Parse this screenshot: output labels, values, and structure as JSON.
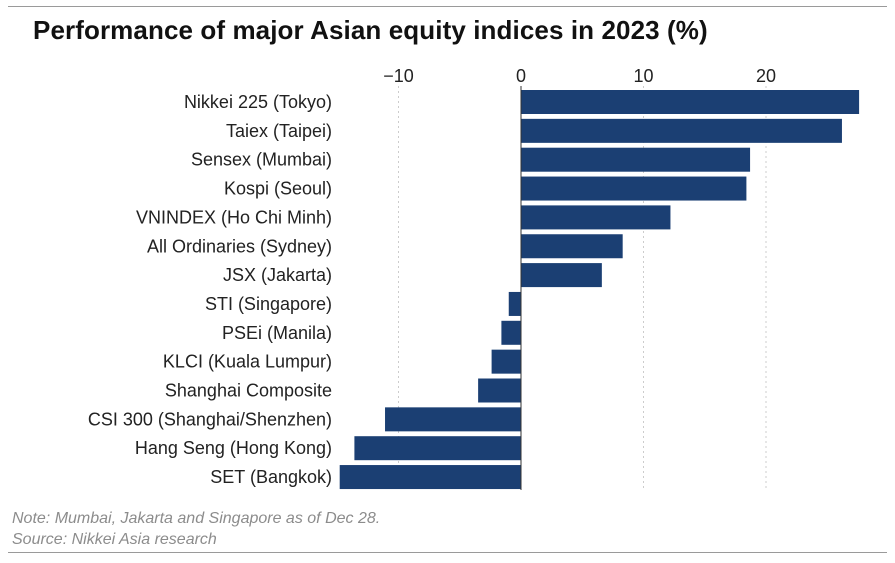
{
  "title": "Performance of major Asian equity indices in 2023 (%)",
  "note": "Note: Mumbai, Jakarta and Singapore as of Dec 28.",
  "source": "Source: Nikkei Asia research",
  "colors": {
    "bar": "#1b3f73",
    "grid": "#cccccc",
    "text": "#222222"
  },
  "chart_data": {
    "type": "bar",
    "orientation": "horizontal",
    "title": "Performance of major Asian equity indices in 2023 (%)",
    "xlabel": "",
    "ylabel": "",
    "xlim": [
      -14.8,
      27.5
    ],
    "x_ticks": [
      -10,
      0,
      10,
      20
    ],
    "grid": "vertical dotted",
    "categories": [
      "Nikkei 225 (Tokyo)",
      "Taiex (Taipei)",
      "Sensex (Mumbai)",
      "Kospi (Seoul)",
      "VNINDEX (Ho Chi Minh)",
      "All Ordinaries (Sydney)",
      "JSX (Jakarta)",
      "STI (Singapore)",
      "PSEi (Manila)",
      "KLCI (Kuala Lumpur)",
      "Shanghai Composite",
      "CSI 300 (Shanghai/Shenzhen)",
      "Hang Seng (Hong Kong)",
      "SET (Bangkok)"
    ],
    "values": [
      27.6,
      26.2,
      18.7,
      18.4,
      12.2,
      8.3,
      6.6,
      -1.0,
      -1.6,
      -2.4,
      -3.5,
      -11.1,
      -13.6,
      -14.8
    ]
  }
}
